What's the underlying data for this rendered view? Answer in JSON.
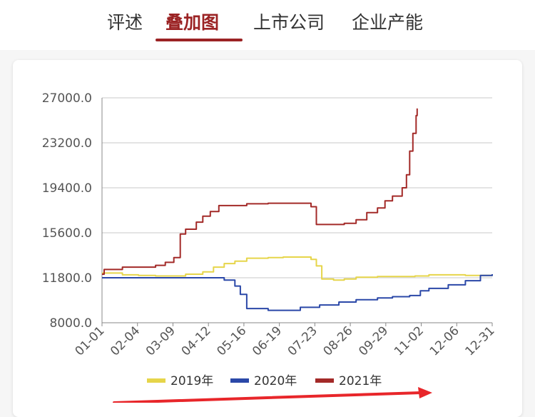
{
  "tabs": [
    {
      "label": "评述",
      "active": false
    },
    {
      "label": "叠加图",
      "active": true
    },
    {
      "label": "上市公司",
      "active": false
    },
    {
      "label": "企业产能",
      "active": false
    }
  ],
  "colors": {
    "accent": "#9b2324",
    "series_2019": "#e6d54a",
    "series_2020": "#2b48a8",
    "series_2021": "#a32a28",
    "grid": "#c8c8c8",
    "annotation_arrow": "#e8262a"
  },
  "chart_data": {
    "type": "line",
    "ylim": [
      8000,
      27000
    ],
    "yticks": [
      "27000.0",
      "23200.0",
      "19400.0",
      "15600.0",
      "11800.0",
      "8000.0"
    ],
    "xticks": [
      "01-01",
      "02-04",
      "03-09",
      "04-12",
      "05-16",
      "06-19",
      "07-23",
      "08-26",
      "09-29",
      "11-02",
      "12-06",
      "12-31"
    ],
    "grid": true,
    "legend_position": "bottom",
    "series": [
      {
        "name": "2019年",
        "color": "#e6d54a",
        "points": [
          [
            "01-01",
            12200
          ],
          [
            "01-10",
            12200
          ],
          [
            "01-20",
            12050
          ],
          [
            "02-04",
            12000
          ],
          [
            "02-20",
            11950
          ],
          [
            "03-09",
            11950
          ],
          [
            "03-20",
            12100
          ],
          [
            "04-05",
            12300
          ],
          [
            "04-15",
            12700
          ],
          [
            "04-25",
            13000
          ],
          [
            "05-05",
            13200
          ],
          [
            "05-16",
            13450
          ],
          [
            "06-05",
            13500
          ],
          [
            "06-19",
            13550
          ],
          [
            "07-05",
            13550
          ],
          [
            "07-15",
            13350
          ],
          [
            "07-20",
            12800
          ],
          [
            "07-25",
            11700
          ],
          [
            "08-05",
            11600
          ],
          [
            "08-15",
            11700
          ],
          [
            "08-26",
            11850
          ],
          [
            "09-15",
            11900
          ],
          [
            "09-29",
            11900
          ],
          [
            "10-20",
            11950
          ],
          [
            "11-02",
            12050
          ],
          [
            "12-06",
            12000
          ],
          [
            "12-31",
            11950
          ]
        ]
      },
      {
        "name": "2020年",
        "color": "#2b48a8",
        "points": [
          [
            "01-01",
            11800
          ],
          [
            "02-04",
            11800
          ],
          [
            "03-09",
            11800
          ],
          [
            "04-12",
            11800
          ],
          [
            "04-25",
            11600
          ],
          [
            "05-05",
            11100
          ],
          [
            "05-10",
            10400
          ],
          [
            "05-16",
            9200
          ],
          [
            "06-05",
            9050
          ],
          [
            "06-19",
            9050
          ],
          [
            "07-05",
            9300
          ],
          [
            "07-23",
            9500
          ],
          [
            "08-10",
            9750
          ],
          [
            "08-26",
            9950
          ],
          [
            "09-15",
            10100
          ],
          [
            "09-29",
            10200
          ],
          [
            "10-15",
            10300
          ],
          [
            "10-25",
            10700
          ],
          [
            "11-02",
            10900
          ],
          [
            "11-20",
            11200
          ],
          [
            "12-06",
            11550
          ],
          [
            "12-20",
            12000
          ],
          [
            "12-31",
            12100
          ]
        ]
      },
      {
        "name": "2021年",
        "color": "#a32a28",
        "points": [
          [
            "01-01",
            12100
          ],
          [
            "01-03",
            12500
          ],
          [
            "01-20",
            12700
          ],
          [
            "02-04",
            12700
          ],
          [
            "02-20",
            12850
          ],
          [
            "03-01",
            13100
          ],
          [
            "03-09",
            13500
          ],
          [
            "03-15",
            15500
          ],
          [
            "03-20",
            15900
          ],
          [
            "03-30",
            16500
          ],
          [
            "04-05",
            17000
          ],
          [
            "04-12",
            17400
          ],
          [
            "04-20",
            17900
          ],
          [
            "05-16",
            18050
          ],
          [
            "06-05",
            18100
          ],
          [
            "06-19",
            18100
          ],
          [
            "07-10",
            18100
          ],
          [
            "07-15",
            17800
          ],
          [
            "07-20",
            16300
          ],
          [
            "08-05",
            16300
          ],
          [
            "08-15",
            16400
          ],
          [
            "08-26",
            16700
          ],
          [
            "09-05",
            17300
          ],
          [
            "09-15",
            17700
          ],
          [
            "09-22",
            18300
          ],
          [
            "09-29",
            18700
          ],
          [
            "10-08",
            19400
          ],
          [
            "10-12",
            20500
          ],
          [
            "10-15",
            22500
          ],
          [
            "10-18",
            24000
          ],
          [
            "10-21",
            25500
          ],
          [
            "10-22",
            26100
          ]
        ]
      }
    ]
  }
}
